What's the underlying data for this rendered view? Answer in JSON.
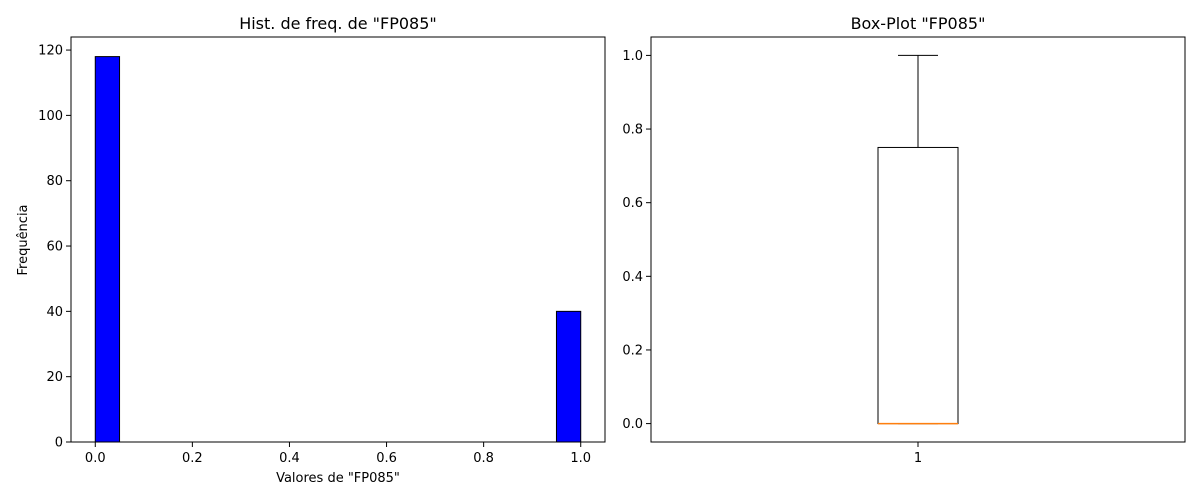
{
  "chart_data": [
    {
      "type": "bar",
      "title": "Hist. de freq. de \"FP085\"",
      "xlabel": "Valores de \"FP085\"",
      "ylabel": "Frequência",
      "xlim": [
        -0.05,
        1.05
      ],
      "ylim": [
        0,
        124
      ],
      "xticks": [
        "0.0",
        "0.2",
        "0.4",
        "0.6",
        "0.8",
        "1.0"
      ],
      "yticks": [
        "0",
        "20",
        "40",
        "60",
        "80",
        "100",
        "120"
      ],
      "bin_width": 0.05,
      "bins": [
        {
          "x": 0.0,
          "value": 118
        },
        {
          "x": 0.95,
          "value": 40
        }
      ],
      "bar_color": "#0000ff",
      "edge_color": "#000000",
      "grid": false
    },
    {
      "type": "box",
      "title": "Box-Plot \"FP085\"",
      "xticks": [
        "1"
      ],
      "yticks": [
        "0.0",
        "0.2",
        "0.4",
        "0.6",
        "0.8",
        "1.0"
      ],
      "ylim": [
        -0.05,
        1.05
      ],
      "box": {
        "q1": 0.0,
        "median": 0.0,
        "q3": 0.75,
        "whisker_low": 0.0,
        "whisker_high": 1.0
      },
      "median_color": "#ff7f0e",
      "grid": false
    }
  ]
}
